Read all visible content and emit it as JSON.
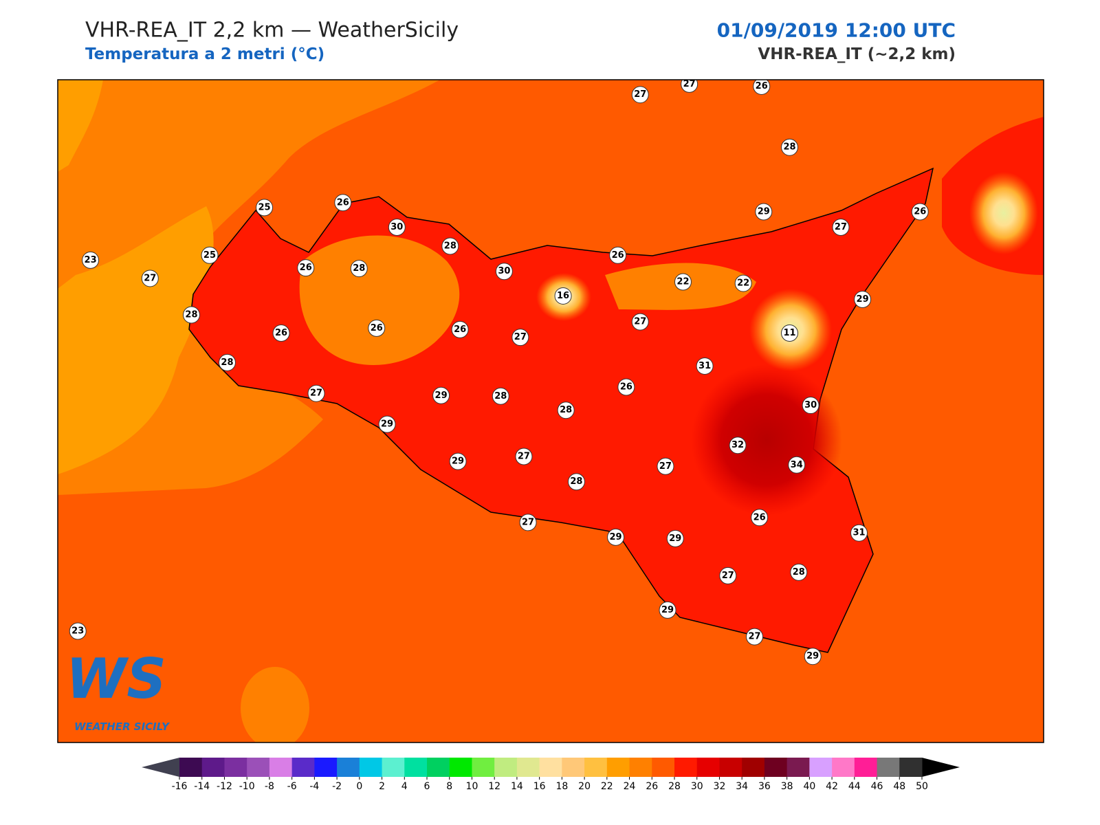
{
  "header": {
    "title": "VHR-REA_IT 2,2 km — WeatherSicily",
    "subtitle": "Temperatura a 2 metri (°C)",
    "date": "01/09/2019 12:00 UTC",
    "model": "VHR-REA_IT (~2,2 km)"
  },
  "stations": [
    27,
    27,
    26,
    28,
    25,
    26,
    30,
    28,
    23,
    25,
    26,
    28,
    30,
    26,
    29,
    27,
    26,
    27,
    16,
    22,
    22,
    29,
    28,
    26,
    26,
    26,
    27,
    27,
    11,
    28,
    31,
    27,
    29,
    28,
    26,
    28,
    30,
    29,
    32,
    34,
    29,
    27,
    27,
    28,
    27,
    29,
    29,
    26,
    31,
    27,
    28,
    29,
    23,
    27,
    29
  ],
  "logo": {
    "mark": "WS",
    "text": "WEATHER SICILY"
  },
  "colorbar": {
    "ticks": [
      -16,
      -14,
      -12,
      -10,
      -8,
      -6,
      -4,
      -2,
      0,
      2,
      4,
      6,
      8,
      10,
      12,
      14,
      16,
      18,
      20,
      22,
      24,
      26,
      28,
      30,
      32,
      34,
      36,
      38,
      40,
      42,
      44,
      46,
      48,
      50
    ],
    "colors": [
      "#3d0a52",
      "#5e1a8a",
      "#7b2fa0",
      "#9b50b8",
      "#d97ee6",
      "#5a2bc9",
      "#1a1aff",
      "#1a80d8",
      "#00c8e6",
      "#5cf0d0",
      "#00e0a0",
      "#00d060",
      "#00e800",
      "#70ee40",
      "#c0ec80",
      "#e0e890",
      "#ffe0a0",
      "#ffc878",
      "#ffc040",
      "#ff9e00",
      "#ff8000",
      "#ff5a00",
      "#ff1a00",
      "#e60000",
      "#c80000",
      "#a00000",
      "#6e0020",
      "#7a1a50",
      "#d8a0ff",
      "#ff78c8",
      "#ff1e96",
      "#787878",
      "#303030"
    ],
    "extend_colors": [
      "#404050",
      "#000000"
    ]
  }
}
